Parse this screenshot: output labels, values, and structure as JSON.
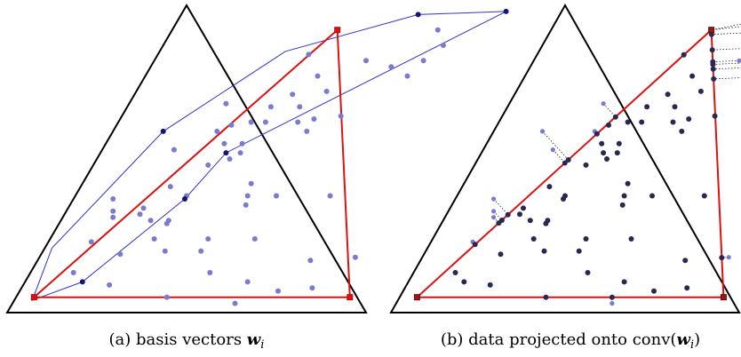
{
  "panels": [
    {
      "caption": {
        "label": "(a)",
        "text": "basis vectors",
        "math": "w",
        "subscript": "i",
        "suffix": ""
      },
      "hull": [
        [
          0.05,
          0.04
        ],
        [
          0.16,
          0.1
        ],
        [
          0.31,
          0.37
        ],
        [
          0.35,
          0.52
        ],
        [
          0.9,
          0.98
        ],
        [
          0.66,
          0.97
        ],
        [
          0.35,
          0.85
        ],
        [
          0.14,
          0.59
        ],
        [
          0.02,
          0.21
        ]
      ],
      "basis": [
        [
          0.05,
          0.05
        ],
        [
          0.93,
          0.05
        ],
        [
          0.46,
          0.92
        ]
      ],
      "dark_points": [
        [
          0.16,
          0.1
        ],
        [
          0.31,
          0.37
        ],
        [
          0.35,
          0.52
        ],
        [
          0.9,
          0.98
        ],
        [
          0.66,
          0.97
        ],
        [
          0.14,
          0.59
        ]
      ],
      "points": [
        [
          0.62,
          0.03
        ],
        [
          0.42,
          0.05
        ],
        [
          0.62,
          0.1
        ],
        [
          0.72,
          0.07
        ],
        [
          0.81,
          0.08
        ],
        [
          0.24,
          0.09
        ],
        [
          0.5,
          0.13
        ],
        [
          0.12,
          0.13
        ],
        [
          0.76,
          0.17
        ],
        [
          0.88,
          0.18
        ],
        [
          0.22,
          0.19
        ],
        [
          0.34,
          0.2
        ],
        [
          0.44,
          0.2
        ],
        [
          0.12,
          0.23
        ],
        [
          0.29,
          0.24
        ],
        [
          0.44,
          0.24
        ],
        [
          0.57,
          0.24
        ],
        [
          0.3,
          0.29
        ],
        [
          0.25,
          0.3
        ],
        [
          0.3,
          0.3
        ],
        [
          0.14,
          0.31
        ],
        [
          0.21,
          0.32
        ],
        [
          0.13,
          0.33
        ],
        [
          0.21,
          0.34
        ],
        [
          0.49,
          0.35
        ],
        [
          0.11,
          0.37
        ],
        [
          0.31,
          0.38
        ],
        [
          0.48,
          0.38
        ],
        [
          0.56,
          0.38
        ],
        [
          0.71,
          0.38
        ],
        [
          0.25,
          0.41
        ],
        [
          0.47,
          0.42
        ],
        [
          0.32,
          0.48
        ],
        [
          0.37,
          0.5
        ],
        [
          0.39,
          0.52
        ],
        [
          0.2,
          0.53
        ],
        [
          0.33,
          0.55
        ],
        [
          0.38,
          0.55
        ],
        [
          0.29,
          0.59
        ],
        [
          0.54,
          0.59
        ],
        [
          0.32,
          0.61
        ],
        [
          0.37,
          0.62
        ],
        [
          0.41,
          0.62
        ],
        [
          0.5,
          0.62
        ],
        [
          0.54,
          0.63
        ],
        [
          0.61,
          0.64
        ],
        [
          0.4,
          0.67
        ],
        [
          0.48,
          0.67
        ],
        [
          0.27,
          0.68
        ],
        [
          0.44,
          0.71
        ],
        [
          0.53,
          0.72
        ],
        [
          0.48,
          0.77
        ],
        [
          0.73,
          0.77
        ],
        [
          0.67,
          0.8
        ],
        [
          0.59,
          0.82
        ],
        [
          0.75,
          0.82
        ],
        [
          0.78,
          0.87
        ],
        [
          0.42,
          0.84
        ],
        [
          0.74,
          0.92
        ]
      ]
    },
    {
      "caption": {
        "label": "(b)",
        "text": "data projected onto conv(",
        "math": "w",
        "subscript": "i",
        "suffix": ")"
      },
      "basis": [
        [
          0.05,
          0.05
        ],
        [
          0.93,
          0.05
        ],
        [
          0.46,
          0.92
        ]
      ],
      "points": [
        [
          0.62,
          0.03
        ],
        [
          0.42,
          0.05
        ],
        [
          0.62,
          0.1
        ],
        [
          0.72,
          0.07
        ],
        [
          0.81,
          0.08
        ],
        [
          0.24,
          0.09
        ],
        [
          0.5,
          0.13
        ],
        [
          0.12,
          0.13
        ],
        [
          0.76,
          0.17
        ],
        [
          0.88,
          0.18
        ],
        [
          0.22,
          0.19
        ],
        [
          0.34,
          0.2
        ],
        [
          0.44,
          0.2
        ],
        [
          0.12,
          0.23
        ],
        [
          0.29,
          0.24
        ],
        [
          0.44,
          0.24
        ],
        [
          0.57,
          0.24
        ],
        [
          0.3,
          0.29
        ],
        [
          0.25,
          0.3
        ],
        [
          0.3,
          0.3
        ],
        [
          0.14,
          0.31
        ],
        [
          0.21,
          0.32
        ],
        [
          0.13,
          0.33
        ],
        [
          0.21,
          0.34
        ],
        [
          0.49,
          0.35
        ],
        [
          0.11,
          0.37
        ],
        [
          0.31,
          0.38
        ],
        [
          0.48,
          0.38
        ],
        [
          0.56,
          0.38
        ],
        [
          0.71,
          0.38
        ],
        [
          0.25,
          0.41
        ],
        [
          0.47,
          0.42
        ],
        [
          0.32,
          0.48
        ],
        [
          0.37,
          0.5
        ],
        [
          0.39,
          0.52
        ],
        [
          0.2,
          0.53
        ],
        [
          0.33,
          0.55
        ],
        [
          0.38,
          0.55
        ],
        [
          0.29,
          0.59
        ],
        [
          0.54,
          0.59
        ],
        [
          0.32,
          0.61
        ],
        [
          0.37,
          0.62
        ],
        [
          0.41,
          0.62
        ],
        [
          0.5,
          0.62
        ],
        [
          0.54,
          0.63
        ],
        [
          0.61,
          0.64
        ],
        [
          0.4,
          0.67
        ],
        [
          0.48,
          0.67
        ],
        [
          0.27,
          0.68
        ],
        [
          0.44,
          0.71
        ],
        [
          0.53,
          0.72
        ],
        [
          0.48,
          0.77
        ],
        [
          0.73,
          0.77
        ],
        [
          0.67,
          0.8
        ],
        [
          0.59,
          0.82
        ],
        [
          0.75,
          0.82
        ],
        [
          0.78,
          0.87
        ],
        [
          0.42,
          0.84
        ],
        [
          0.74,
          0.92
        ],
        [
          0.16,
          0.1
        ],
        [
          0.31,
          0.37
        ],
        [
          0.35,
          0.52
        ],
        [
          0.9,
          0.98
        ],
        [
          0.66,
          0.97
        ],
        [
          0.14,
          0.59
        ]
      ]
    }
  ],
  "colors": {
    "triangle": "#000000",
    "hull": "#3333cc",
    "basis": "#dd1111",
    "basis_marker": "#aa1111",
    "point": "#7a7ad0",
    "point_dark": "#141478",
    "projected": "#282850",
    "projection_line": "#222222"
  }
}
